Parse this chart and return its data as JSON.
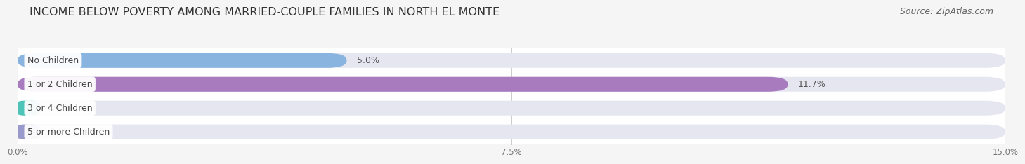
{
  "title": "INCOME BELOW POVERTY AMONG MARRIED-COUPLE FAMILIES IN NORTH EL MONTE",
  "source": "Source: ZipAtlas.com",
  "categories": [
    "No Children",
    "1 or 2 Children",
    "3 or 4 Children",
    "5 or more Children"
  ],
  "values": [
    5.0,
    11.7,
    0.0,
    0.0
  ],
  "bar_colors": [
    "#8ab4e0",
    "#a87bbf",
    "#4ec4b8",
    "#9999cc"
  ],
  "xlim": [
    0,
    15.0
  ],
  "xticks": [
    0.0,
    7.5,
    15.0
  ],
  "xtick_labels": [
    "0.0%",
    "7.5%",
    "15.0%"
  ],
  "background_color": "#f5f5f5",
  "bar_bg_color": "#e6e6f0",
  "row_bg_color": "#ffffff",
  "title_fontsize": 11.5,
  "source_fontsize": 9,
  "bar_height": 0.62,
  "bar_label_fontsize": 9,
  "category_fontsize": 9,
  "tick_fontsize": 8.5
}
